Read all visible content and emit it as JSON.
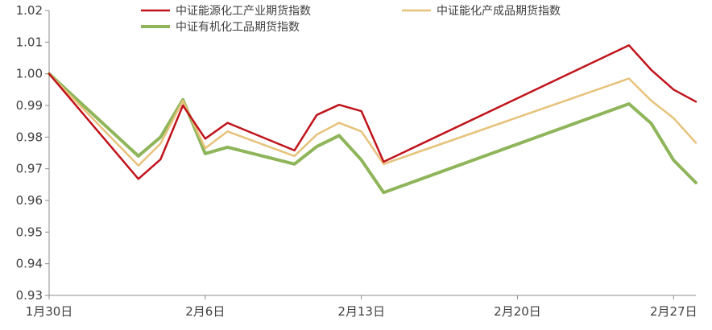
{
  "chart_data": {
    "type": "line",
    "title": "",
    "xlabel": "",
    "ylabel": "",
    "ylim": [
      0.93,
      1.02
    ],
    "yticks": [
      0.93,
      0.94,
      0.95,
      0.96,
      0.97,
      0.98,
      0.99,
      1.0,
      1.01,
      1.02
    ],
    "ytick_labels": [
      "0.93",
      "0.94",
      "0.95",
      "0.96",
      "0.97",
      "0.98",
      "0.99",
      "1.00",
      "1.01",
      "1.02"
    ],
    "xlim": [
      "2025-01-30",
      "2025-02-28"
    ],
    "xticks": [
      "2025-01-30",
      "2025-02-06",
      "2025-02-13",
      "2025-02-20",
      "2025-02-27"
    ],
    "xtick_labels": [
      "1月30日",
      "2月6日",
      "2月13日",
      "2月20日",
      "2月27日"
    ],
    "x": [
      "2025-01-30",
      "2025-02-03",
      "2025-02-04",
      "2025-02-05",
      "2025-02-06",
      "2025-02-07",
      "2025-02-10",
      "2025-02-11",
      "2025-02-12",
      "2025-02-13",
      "2025-02-14",
      "2025-02-25",
      "2025-02-26",
      "2025-02-27",
      "2025-02-28"
    ],
    "legend_position": "top",
    "series": [
      {
        "name": "中证能源化工产业期货指数",
        "color": "#c0141c",
        "values": [
          1.0,
          0.9668,
          0.973,
          0.99,
          0.9795,
          0.9845,
          0.9758,
          0.987,
          0.9902,
          0.9882,
          0.9722,
          1.009,
          1.0012,
          0.995,
          0.9912
        ]
      },
      {
        "name": "中证能化产成品期货指数",
        "color": "#e6c27a",
        "values": [
          1.0,
          0.971,
          0.978,
          0.9915,
          0.9765,
          0.9818,
          0.974,
          0.9808,
          0.9845,
          0.9818,
          0.9715,
          0.9985,
          0.9915,
          0.986,
          0.9782
        ]
      },
      {
        "name": "中证有机化工品期货指数",
        "color": "#8fb55a",
        "values": [
          1.0,
          0.974,
          0.98,
          0.9918,
          0.9748,
          0.9768,
          0.9715,
          0.977,
          0.9805,
          0.9728,
          0.9625,
          0.9905,
          0.9843,
          0.9727,
          0.9656
        ]
      }
    ]
  }
}
